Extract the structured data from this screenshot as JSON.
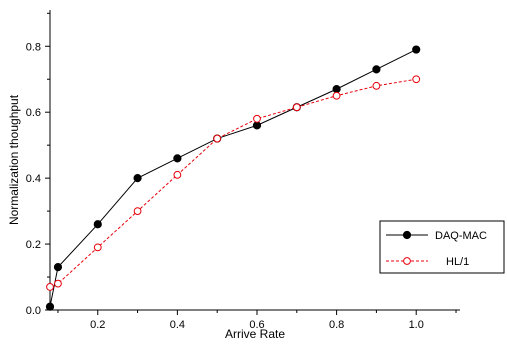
{
  "chart_data": {
    "type": "line",
    "title": "",
    "xlabel": "Arrive Rate",
    "ylabel": "Normalization thoughput",
    "xlim": [
      0.08,
      1.11
    ],
    "ylim": [
      0,
      0.91
    ],
    "xticks": [
      0.2,
      0.4,
      0.6,
      0.8,
      1.0
    ],
    "xtick_labels": [
      "0.2",
      "0.4",
      "0.6",
      "0.8",
      "1.0"
    ],
    "yticks": [
      0.0,
      0.2,
      0.4,
      0.6,
      0.8
    ],
    "ytick_labels": [
      "0.0",
      "0.2",
      "0.4",
      "0.6",
      "0.8"
    ],
    "grid": false,
    "legend_position": "right",
    "series": [
      {
        "name": "DAQ-MAC",
        "color": "#000000",
        "line_style": "solid",
        "marker": "filled-circle",
        "x": [
          0.08,
          0.1,
          0.2,
          0.3,
          0.4,
          0.5,
          0.6,
          0.7,
          0.8,
          0.9,
          1.0
        ],
        "values": [
          0.01,
          0.13,
          0.26,
          0.4,
          0.46,
          0.52,
          0.56,
          0.615,
          0.67,
          0.73,
          0.79
        ]
      },
      {
        "name": "HL/1",
        "color": "#e8000b",
        "line_style": "dashed",
        "marker": "open-circle",
        "x": [
          0.08,
          0.1,
          0.2,
          0.3,
          0.4,
          0.5,
          0.6,
          0.7,
          0.8,
          0.9,
          1.0
        ],
        "values": [
          0.07,
          0.08,
          0.19,
          0.3,
          0.41,
          0.52,
          0.58,
          0.615,
          0.65,
          0.68,
          0.7
        ]
      }
    ]
  }
}
